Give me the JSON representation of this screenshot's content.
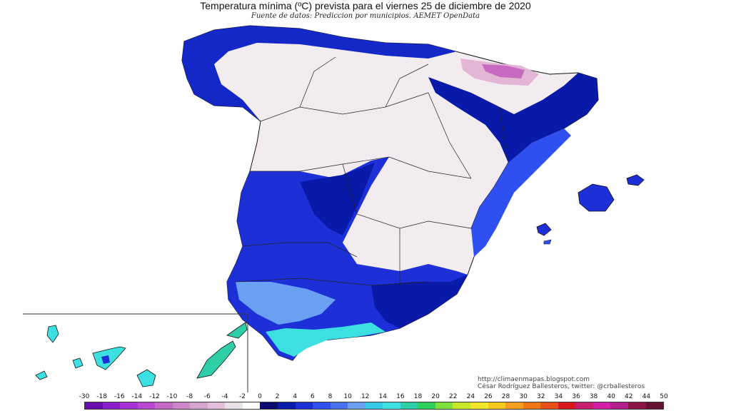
{
  "header": {
    "title": "Temperatura mínima (ºC) prevista para el viernes 25 de diciembre de 2020",
    "subtitle": "Fuente de datos: Prediccion por municipios. AEMET OpenData"
  },
  "credits": {
    "line1": "http://climaenmapas.blogspot.com",
    "line2": "César Rodríguez Ballesteros, twitter: @crballesteros"
  },
  "colors": {
    "land_cold": "#f4eef2",
    "frost_pink": "#e3b6d6",
    "frost_magenta": "#c86bc0",
    "dark_blue": "#0a1aa8",
    "mid_blue": "#1f3de6",
    "light_blue": "#4a72f0",
    "sky_blue": "#6aa0f2",
    "cyan": "#3ce0e0",
    "border": "#111111"
  },
  "legend": {
    "labels": [
      "-30",
      "-18",
      "-16",
      "-14",
      "-12",
      "-10",
      "-8",
      "-6",
      "-4",
      "-2",
      "0",
      "2",
      "4",
      "6",
      "8",
      "10",
      "12",
      "14",
      "16",
      "18",
      "20",
      "22",
      "24",
      "26",
      "28",
      "30",
      "32",
      "34",
      "36",
      "38",
      "40",
      "42",
      "44",
      "50"
    ],
    "colors": [
      "#6a0dad",
      "#8a1fc9",
      "#a530d4",
      "#b848cf",
      "#c467c6",
      "#cd86c8",
      "#d7a3cf",
      "#e2c0db",
      "#ece0e8",
      "#ffffff",
      "#0a0a70",
      "#0a1aa8",
      "#1d30d8",
      "#2f4ff0",
      "#4a72f0",
      "#6aa0f2",
      "#35c8e6",
      "#3ce0e0",
      "#2ecfa8",
      "#2ecf5a",
      "#7ee03a",
      "#c8e62a",
      "#f0e62a",
      "#f4c81e",
      "#f4a01e",
      "#f07818",
      "#e85018",
      "#d8181e",
      "#c81e6e",
      "#d21ea8",
      "#b41e8c",
      "#8c1446",
      "#641432"
    ]
  }
}
